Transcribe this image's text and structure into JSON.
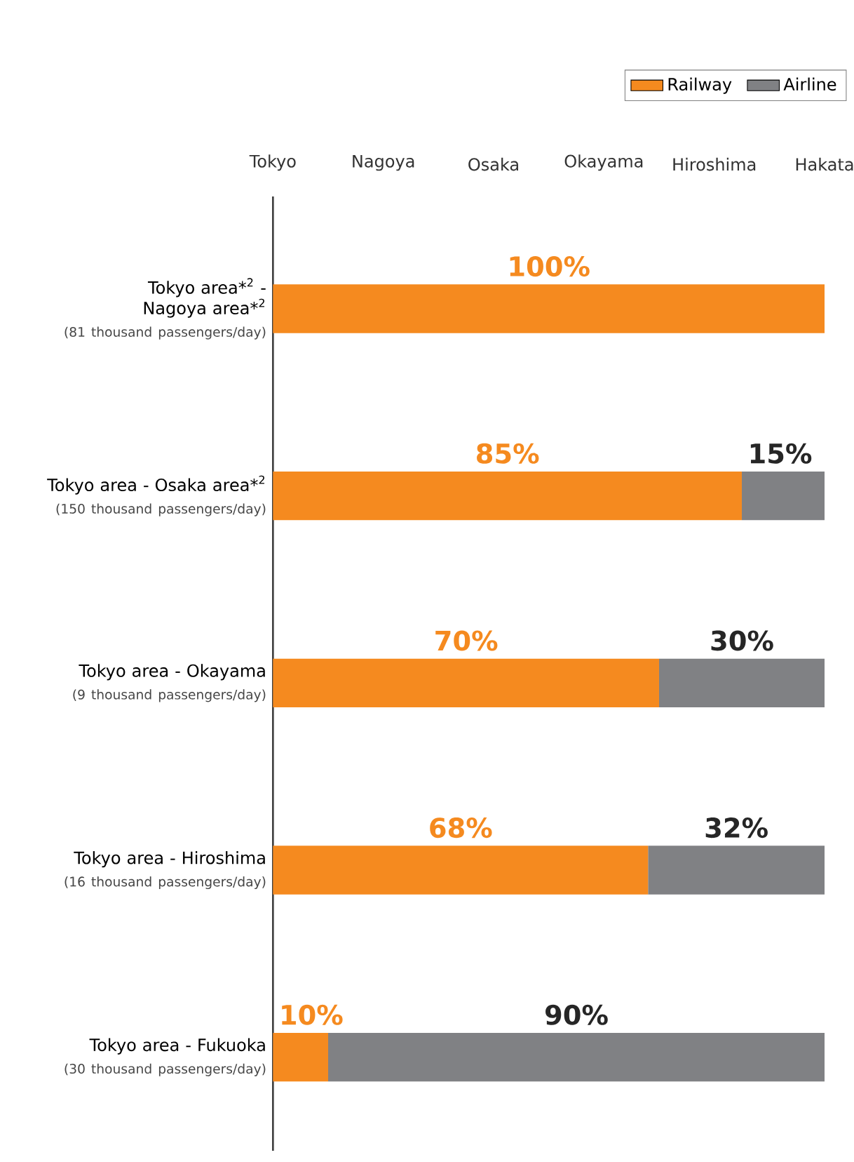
{
  "chart_data": {
    "type": "bar",
    "orientation": "horizontal",
    "stacked": true,
    "categories": [
      "Tokyo area*$^{2}$ - Nagoya area*$^{2}$",
      "Tokyo area - Osaka area*$^{2}$",
      "Tokyo area - Okayama",
      "Tokyo area - Hiroshima",
      "Tokyo area - Fukuoka"
    ],
    "series": [
      {
        "name": "Railway",
        "color": "#f58a1f",
        "values": [
          100,
          85,
          70,
          68,
          10
        ],
        "value_labels": [
          "100%",
          "85%",
          "70%",
          "68%",
          "10%"
        ]
      },
      {
        "name": "Airline",
        "color": "#808184",
        "values": [
          null,
          15,
          30,
          32,
          90
        ],
        "value_labels": [
          null,
          "15%",
          "30%",
          "32%",
          "90%"
        ]
      }
    ],
    "annotations": [
      "Tokyo",
      "Nagoya",
      "Osaka",
      "Okayama",
      "Hiroshima",
      "Hakata",
      "(81 thousand passengers/day)",
      "(150 thousand passengers/day)",
      "(9 thousand passengers/day)",
      "(16 thousand passengers/day)",
      "(30 thousand passengers/day)"
    ],
    "legend": "top right"
  }
}
